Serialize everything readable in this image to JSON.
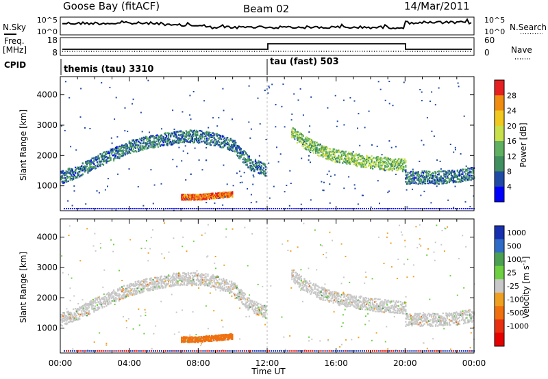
{
  "header": {
    "title": "Goose Bay (fitACF)",
    "beam": "Beam 02",
    "date": "14/Mar/2011"
  },
  "noise_panel": {
    "left_label": "N.Sky",
    "right_label": "N.Search",
    "left_ticks": [
      "10^5",
      "10^0"
    ],
    "right_ticks": [
      "10^5",
      "10^0"
    ]
  },
  "freq_panel": {
    "left_label_line1": "Freq.",
    "left_label_line2": "[MHz]",
    "right_label": "Nave",
    "left_ticks": [
      "18",
      "8"
    ],
    "right_ticks": [
      "60",
      "0"
    ]
  },
  "cpid_panel": {
    "label": "CPID",
    "modes": [
      {
        "name": "themis (tau) 3310",
        "start_hour": 0,
        "end_hour": 12
      },
      {
        "name": "tau (fast) 503",
        "start_hour": 12,
        "end_hour": 24
      }
    ]
  },
  "colors": {
    "power_scale": [
      "#0000ff",
      "#1f4aa6",
      "#3f8f5f",
      "#5fb060",
      "#c8e04a",
      "#f0c81e",
      "#f08c10",
      "#e62020"
    ],
    "velocity_scale": [
      "#1630b0",
      "#2f6cc8",
      "#4aa050",
      "#6cd040",
      "#c8c8c8",
      "#f0a020",
      "#f07010",
      "#e83010",
      "#e60000"
    ]
  },
  "chart_data": [
    {
      "type": "heatmap",
      "title": "",
      "xlabel": "",
      "ylabel": "Slant Range [km]",
      "xlim": [
        0,
        24
      ],
      "ylim": [
        180,
        4600
      ],
      "x_ticks": [
        "00:00",
        "04:00",
        "08:00",
        "12:00",
        "16:00",
        "20:00",
        "00:00"
      ],
      "y_ticks": [
        1000,
        2000,
        3000,
        4000
      ],
      "colorbar": {
        "label": "Power [dB]",
        "ticks": [
          "4",
          "8",
          "12",
          "16",
          "20",
          "24",
          "28"
        ],
        "range": [
          0,
          30
        ]
      },
      "features": [
        {
          "name": "main-arc",
          "x": [
            0,
            1,
            2,
            3,
            4,
            5,
            6,
            7,
            8,
            9,
            10,
            10.5,
            11,
            11.9
          ],
          "range_km": [
            1300,
            1500,
            1800,
            2050,
            2300,
            2450,
            2550,
            2650,
            2650,
            2550,
            2350,
            2050,
            1750,
            1550
          ],
          "power_db": 8
        },
        {
          "name": "pre-midnight-spot",
          "x": [
            7,
            8,
            9,
            10
          ],
          "range_km": [
            650,
            650,
            700,
            750
          ],
          "power_db": 26
        },
        {
          "name": "post-noon-band",
          "x": [
            13.4,
            14,
            15,
            16,
            17,
            18,
            19,
            20
          ],
          "range_km": [
            2800,
            2500,
            2200,
            2000,
            1900,
            1800,
            1750,
            1700
          ],
          "power_db": 14
        },
        {
          "name": "late-band",
          "x": [
            20,
            21,
            22,
            23,
            24
          ],
          "range_km": [
            1300,
            1300,
            1300,
            1350,
            1450
          ],
          "power_db": 8
        }
      ]
    },
    {
      "type": "heatmap",
      "title": "",
      "xlabel": "Time UT",
      "ylabel": "Slant Range [km]",
      "xlim": [
        0,
        24
      ],
      "ylim": [
        180,
        4600
      ],
      "x_ticks": [
        "00:00",
        "04:00",
        "08:00",
        "12:00",
        "16:00",
        "20:00",
        "00:00"
      ],
      "y_ticks": [
        1000,
        2000,
        3000,
        4000
      ],
      "colorbar": {
        "label": "Velocity [m s-1]",
        "ticks": [
          "1000",
          "500",
          "100",
          "25",
          "-25",
          "-100",
          "-500",
          "-1000"
        ],
        "range": [
          -1000,
          1000
        ]
      },
      "features": [
        {
          "name": "main-arc",
          "x": [
            0,
            1,
            2,
            3,
            4,
            5,
            6,
            7,
            8,
            9,
            10,
            10.5,
            11,
            11.9
          ],
          "range_km": [
            1300,
            1500,
            1800,
            2050,
            2300,
            2450,
            2550,
            2650,
            2650,
            2550,
            2350,
            2050,
            1750,
            1550
          ],
          "velocity": 0
        },
        {
          "name": "pre-midnight-spot",
          "x": [
            7,
            8,
            9,
            10
          ],
          "range_km": [
            650,
            650,
            700,
            750
          ],
          "velocity": -150
        },
        {
          "name": "post-noon-band",
          "x": [
            13.4,
            14,
            15,
            16,
            17,
            18,
            19,
            20
          ],
          "range_km": [
            2800,
            2500,
            2200,
            2000,
            1900,
            1800,
            1750,
            1700
          ],
          "velocity": 0
        },
        {
          "name": "late-band",
          "x": [
            20,
            21,
            22,
            23,
            24
          ],
          "range_km": [
            1300,
            1300,
            1300,
            1350,
            1450
          ],
          "velocity": 0
        }
      ]
    }
  ]
}
